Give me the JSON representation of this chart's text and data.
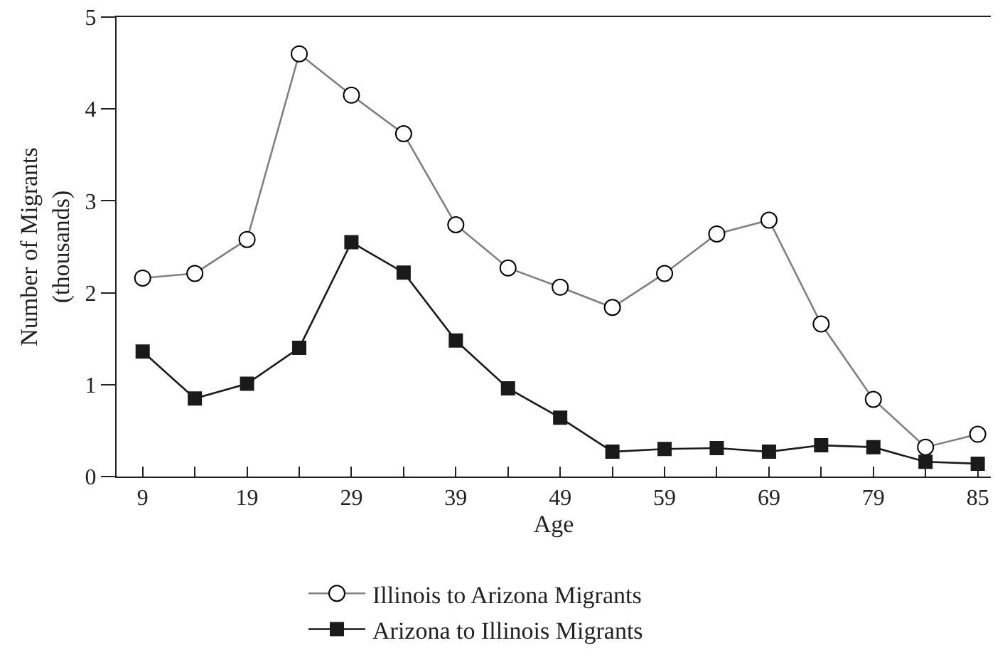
{
  "chart_data": {
    "type": "line",
    "xlabel": "Age",
    "ylabel": "Number of Migrants\n(thousands)",
    "categories": [
      "9",
      null,
      "19",
      null,
      "29",
      null,
      "39",
      null,
      "49",
      null,
      "59",
      null,
      "69",
      null,
      "79",
      null,
      "85"
    ],
    "series": [
      {
        "name": "Illinois to Arizona Migrants",
        "color": "#808080",
        "marker": "circle",
        "values": [
          2.16,
          2.21,
          2.58,
          4.6,
          4.15,
          3.73,
          2.74,
          2.27,
          2.06,
          1.84,
          2.21,
          2.64,
          2.79,
          1.66,
          0.84,
          0.32,
          0.46
        ]
      },
      {
        "name": "Arizona to Illinois Migrants",
        "color": "#1a1a1a",
        "marker": "square",
        "values": [
          1.36,
          0.85,
          1.01,
          1.4,
          2.55,
          2.22,
          1.48,
          0.96,
          0.64,
          0.27,
          0.3,
          0.31,
          0.27,
          0.34,
          0.32,
          0.16,
          0.14
        ]
      }
    ],
    "ylim": [
      0,
      5
    ],
    "yticks": [
      0,
      1,
      2,
      3,
      4,
      5
    ],
    "grid": false,
    "legend": "bottom",
    "line_style": "solid"
  }
}
